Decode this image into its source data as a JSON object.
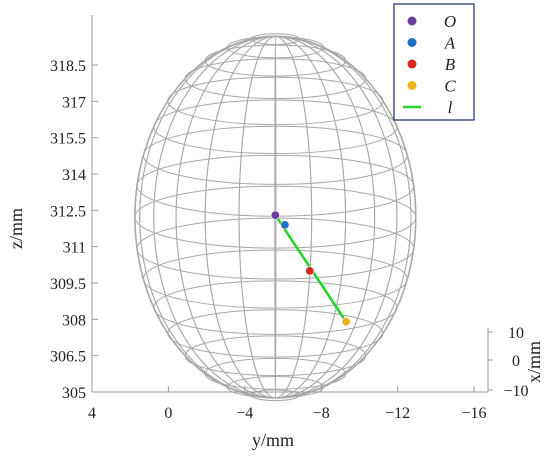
{
  "chart_data": {
    "type": "scatter",
    "xlabel": "y/mm",
    "ylabel": "z/mm",
    "depth_label": "x/mm",
    "x_ticks": [
      "4",
      "0",
      "−4",
      "−8",
      "−12",
      "−16"
    ],
    "y_ticks": [
      "305",
      "306.5",
      "308",
      "309.5",
      "311",
      "312.5",
      "314",
      "315.5",
      "317",
      "318.5"
    ],
    "depth_ticks": [
      "10",
      "0",
      "−10"
    ],
    "xlim": [
      4,
      -16
    ],
    "ylim": [
      305,
      319.2
    ],
    "grid": false,
    "legend_position": "top-right",
    "points": [
      {
        "name": "O",
        "y": -5.6,
        "z": 312.3,
        "color": "#6a3d9a"
      },
      {
        "name": "A",
        "y": -6.1,
        "z": 311.9,
        "color": "#1f6fc5"
      },
      {
        "name": "B",
        "y": -7.4,
        "z": 310.0,
        "color": "#d62718"
      },
      {
        "name": "C",
        "y": -9.3,
        "z": 307.9,
        "color": "#f0b21c"
      }
    ],
    "line": {
      "name": "l",
      "from": {
        "y": -5.6,
        "z": 312.3
      },
      "to": {
        "y": -9.3,
        "z": 307.9
      },
      "color": "#2bd22b"
    },
    "sphere": {
      "center_y": -5.6,
      "center_z": 312.3,
      "radius": 7.3,
      "color": "#a8a8a8"
    },
    "legend": [
      {
        "label": "O",
        "kind": "marker",
        "color": "#6a3d9a"
      },
      {
        "label": "A",
        "kind": "marker",
        "color": "#1f6fc5"
      },
      {
        "label": "B",
        "kind": "marker",
        "color": "#d62718"
      },
      {
        "label": "C",
        "kind": "marker",
        "color": "#f0b21c"
      },
      {
        "label": "l",
        "kind": "line",
        "color": "#2bd22b"
      }
    ]
  }
}
